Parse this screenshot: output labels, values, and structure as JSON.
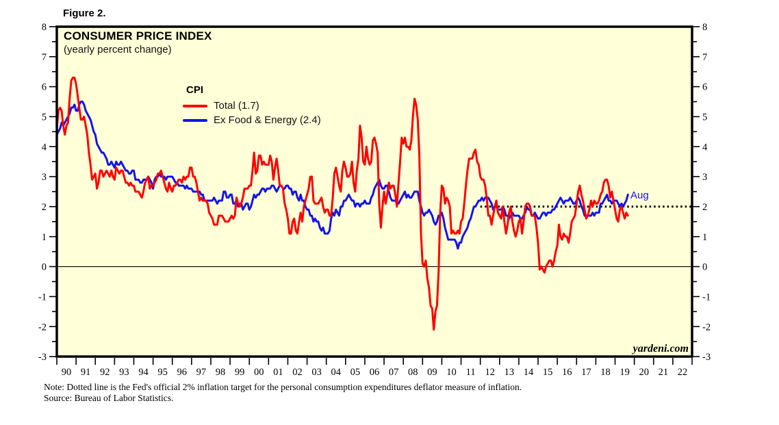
{
  "page": {
    "figure_label": "Figure 2.",
    "note": "Note: Dotted line is the Fed's official 2% inflation target for the personal consumption expenditures deflator measure of inflation.",
    "source": "Source: Bureau of Labor Statistics."
  },
  "colors": {
    "plot_bg": "#ffffd8",
    "border": "#000000",
    "total_line": "#ff0000",
    "core_line": "#1414e8",
    "target_line": "#000000",
    "axis_text": "#000000"
  },
  "chart_data": {
    "type": "line",
    "title": "CONSUMER PRICE INDEX",
    "subtitle": "(yearly percent change)",
    "legend_title": "CPI",
    "legend_position": "inside-top-left-offset",
    "grid": false,
    "ylim": [
      -3,
      8
    ],
    "y_major_step": 1,
    "y_minor_step": 0.5,
    "x_start": "1989-12",
    "x_frequency": "monthly",
    "x_tick_labels": [
      "90",
      "91",
      "92",
      "93",
      "94",
      "95",
      "96",
      "97",
      "98",
      "99",
      "00",
      "01",
      "02",
      "03",
      "04",
      "05",
      "06",
      "07",
      "08",
      "09",
      "10",
      "11",
      "12",
      "13",
      "14",
      "15",
      "16",
      "17",
      "18",
      "19",
      "20",
      "21",
      "22"
    ],
    "zero_line_value": 0,
    "target_line": {
      "value": 2.0,
      "start_year_label": "12",
      "style": "dotted",
      "color": "#000000"
    },
    "last_point_label": "Aug",
    "watermark": "yardeni.com",
    "series": [
      {
        "name": "Total (1.7)",
        "latest_value": 1.7,
        "color": "#ff0000",
        "values": [
          4.6,
          5.2,
          5.3,
          5.2,
          4.7,
          4.4,
          4.7,
          4.8,
          5.6,
          6.2,
          6.3,
          6.3,
          6.1,
          5.7,
          5.3,
          4.9,
          4.9,
          5.0,
          4.7,
          4.4,
          3.8,
          3.4,
          2.9,
          3.0,
          3.1,
          2.6,
          2.8,
          3.2,
          3.2,
          3.0,
          3.1,
          3.2,
          3.1,
          3.0,
          3.2,
          3.0,
          2.9,
          3.3,
          3.2,
          3.1,
          3.2,
          3.2,
          3.0,
          2.8,
          2.8,
          2.7,
          2.8,
          2.7,
          2.7,
          2.5,
          2.5,
          2.5,
          2.4,
          2.3,
          2.5,
          2.8,
          2.9,
          3.0,
          2.6,
          2.7,
          2.7,
          2.8,
          2.9,
          3.1,
          3.1,
          3.2,
          3.0,
          2.8,
          2.6,
          2.5,
          2.8,
          2.6,
          2.5,
          2.7,
          2.7,
          2.8,
          2.9,
          2.9,
          2.8,
          3.0,
          2.9,
          3.0,
          3.0,
          3.3,
          3.3,
          3.0,
          3.0,
          2.8,
          2.5,
          2.2,
          2.3,
          2.2,
          2.2,
          2.2,
          2.1,
          1.8,
          1.7,
          1.6,
          1.4,
          1.4,
          1.4,
          1.7,
          1.7,
          1.7,
          1.6,
          1.5,
          1.5,
          1.5,
          1.6,
          1.7,
          1.6,
          1.7,
          2.3,
          2.1,
          2.0,
          2.1,
          2.3,
          2.6,
          2.6,
          2.6,
          2.7,
          2.7,
          3.2,
          3.8,
          3.1,
          3.2,
          3.7,
          3.7,
          3.4,
          3.5,
          3.4,
          3.4,
          3.4,
          3.7,
          3.5,
          2.9,
          3.3,
          3.6,
          3.2,
          2.7,
          2.7,
          2.6,
          2.1,
          1.9,
          1.6,
          1.1,
          1.1,
          1.5,
          1.6,
          1.2,
          1.1,
          1.5,
          1.8,
          1.5,
          2.0,
          2.2,
          2.4,
          2.6,
          3.0,
          3.0,
          2.2,
          2.1,
          2.1,
          2.1,
          2.2,
          2.3,
          2.0,
          1.8,
          1.9,
          1.9,
          1.7,
          1.7,
          2.3,
          3.1,
          3.3,
          3.0,
          2.7,
          2.5,
          3.2,
          3.5,
          3.3,
          3.0,
          3.0,
          3.1,
          3.5,
          2.8,
          2.5,
          3.2,
          3.6,
          4.7,
          4.3,
          3.5,
          3.4,
          4.0,
          3.6,
          3.4,
          3.5,
          4.2,
          4.3,
          4.1,
          3.8,
          2.1,
          1.3,
          2.0,
          2.5,
          2.1,
          2.4,
          2.8,
          2.6,
          2.7,
          2.7,
          2.4,
          2.0,
          2.8,
          3.5,
          4.3,
          4.1,
          4.3,
          4.0,
          4.0,
          3.9,
          4.2,
          5.0,
          5.6,
          5.4,
          4.9,
          3.7,
          1.1,
          0.1,
          0.0,
          0.2,
          -0.4,
          -0.7,
          -1.3,
          -1.4,
          -2.1,
          -1.5,
          -1.3,
          -0.2,
          1.8,
          2.7,
          2.6,
          2.1,
          2.3,
          2.2,
          2.0,
          1.1,
          1.2,
          1.1,
          1.1,
          1.2,
          1.1,
          1.5,
          1.6,
          2.1,
          2.7,
          3.2,
          3.6,
          3.6,
          3.6,
          3.8,
          3.9,
          3.5,
          3.4,
          3.0,
          2.9,
          2.9,
          2.7,
          2.3,
          1.7,
          1.7,
          1.4,
          1.7,
          2.0,
          2.2,
          1.8,
          1.7,
          1.6,
          2.0,
          1.5,
          1.1,
          1.4,
          1.8,
          2.0,
          1.5,
          1.2,
          1.0,
          1.2,
          1.5,
          1.6,
          1.1,
          1.5,
          2.0,
          2.1,
          2.1,
          2.0,
          1.7,
          1.7,
          1.7,
          1.3,
          0.8,
          -0.1,
          0.0,
          -0.1,
          -0.2,
          0.0,
          0.1,
          0.2,
          0.2,
          0.0,
          0.2,
          0.5,
          0.7,
          1.4,
          1.0,
          0.9,
          1.1,
          1.0,
          1.0,
          0.8,
          1.1,
          1.5,
          1.6,
          1.7,
          2.1,
          2.5,
          2.7,
          2.4,
          2.2,
          1.9,
          1.6,
          1.7,
          1.9,
          2.2,
          2.0,
          2.2,
          2.1,
          2.1,
          2.2,
          2.4,
          2.5,
          2.8,
          2.9,
          2.9,
          2.7,
          2.3,
          2.5,
          2.2,
          1.9,
          1.6,
          1.5,
          1.9,
          2.0,
          1.8,
          1.6,
          1.8,
          1.7
        ]
      },
      {
        "name": "Ex Food & Energy (2.4)",
        "latest_value": 2.4,
        "color": "#1414e8",
        "values": [
          4.4,
          4.5,
          4.6,
          4.8,
          4.7,
          4.8,
          4.9,
          5.0,
          5.1,
          5.3,
          5.3,
          5.4,
          5.2,
          5.2,
          5.4,
          5.5,
          5.5,
          5.4,
          5.2,
          5.1,
          5.0,
          4.9,
          4.7,
          4.5,
          4.4,
          4.1,
          4.0,
          3.9,
          3.8,
          3.8,
          3.7,
          3.6,
          3.4,
          3.4,
          3.5,
          3.4,
          3.3,
          3.5,
          3.4,
          3.4,
          3.5,
          3.4,
          3.3,
          3.2,
          3.2,
          3.1,
          3.1,
          3.2,
          3.2,
          2.9,
          2.9,
          2.9,
          2.8,
          2.8,
          2.9,
          2.9,
          2.9,
          3.0,
          2.9,
          2.8,
          2.6,
          2.9,
          3.0,
          3.0,
          3.1,
          3.0,
          3.0,
          3.0,
          2.9,
          3.0,
          3.0,
          3.0,
          3.0,
          2.9,
          2.8,
          2.8,
          2.7,
          2.7,
          2.7,
          2.7,
          2.6,
          2.7,
          2.6,
          2.6,
          2.6,
          2.5,
          2.5,
          2.5,
          2.5,
          2.5,
          2.4,
          2.4,
          2.2,
          2.2,
          2.2,
          2.2,
          2.2,
          2.2,
          2.3,
          2.2,
          2.1,
          2.2,
          2.2,
          2.2,
          2.5,
          2.5,
          2.3,
          2.3,
          2.4,
          2.4,
          2.1,
          2.1,
          2.2,
          2.0,
          2.1,
          2.1,
          1.9,
          2.0,
          2.1,
          2.1,
          1.9,
          2.0,
          2.2,
          2.4,
          2.3,
          2.4,
          2.4,
          2.5,
          2.6,
          2.6,
          2.5,
          2.6,
          2.6,
          2.6,
          2.7,
          2.7,
          2.6,
          2.5,
          2.6,
          2.7,
          2.7,
          2.6,
          2.6,
          2.7,
          2.7,
          2.6,
          2.6,
          2.4,
          2.5,
          2.5,
          2.3,
          2.2,
          2.4,
          2.2,
          2.2,
          2.0,
          1.9,
          1.9,
          1.7,
          1.7,
          1.5,
          1.6,
          1.5,
          1.5,
          1.3,
          1.2,
          1.3,
          1.1,
          1.1,
          1.1,
          1.2,
          1.6,
          1.8,
          1.7,
          1.9,
          1.8,
          1.7,
          2.0,
          2.0,
          2.2,
          2.2,
          2.3,
          2.4,
          2.3,
          2.2,
          2.2,
          2.0,
          2.1,
          2.1,
          2.0,
          2.1,
          2.1,
          2.2,
          2.1,
          2.1,
          2.1,
          2.3,
          2.4,
          2.6,
          2.7,
          2.8,
          2.9,
          2.7,
          2.6,
          2.6,
          2.7,
          2.7,
          2.5,
          2.3,
          2.2,
          2.2,
          2.2,
          2.1,
          2.1,
          2.2,
          2.3,
          2.4,
          2.5,
          2.3,
          2.4,
          2.3,
          2.3,
          2.4,
          2.5,
          2.5,
          2.5,
          2.2,
          2.0,
          1.8,
          1.7,
          1.8,
          1.8,
          1.9,
          1.8,
          1.7,
          1.5,
          1.4,
          1.5,
          1.7,
          1.7,
          1.8,
          1.6,
          1.3,
          1.1,
          0.9,
          0.9,
          0.9,
          0.9,
          0.9,
          0.8,
          0.6,
          0.8,
          0.8,
          1.0,
          1.1,
          1.2,
          1.3,
          1.5,
          1.6,
          1.8,
          2.0,
          2.0,
          2.1,
          2.2,
          2.2,
          2.3,
          2.2,
          2.3,
          2.3,
          2.3,
          2.2,
          2.1,
          1.9,
          2.0,
          2.0,
          1.9,
          1.9,
          1.9,
          2.0,
          1.9,
          1.7,
          1.7,
          1.6,
          1.7,
          1.8,
          1.7,
          1.7,
          1.7,
          1.7,
          1.6,
          1.6,
          1.7,
          1.8,
          2.0,
          1.9,
          1.9,
          1.7,
          1.7,
          1.8,
          1.7,
          1.6,
          1.6,
          1.7,
          1.8,
          1.8,
          1.7,
          1.8,
          1.8,
          1.8,
          1.9,
          1.9,
          2.0,
          2.1,
          2.2,
          2.3,
          2.2,
          2.1,
          2.2,
          2.2,
          2.2,
          2.3,
          2.2,
          2.1,
          2.1,
          2.2,
          2.3,
          2.2,
          2.0,
          1.9,
          1.7,
          1.7,
          1.7,
          1.7,
          1.7,
          1.8,
          1.7,
          1.8,
          1.8,
          1.8,
          2.1,
          2.1,
          2.2,
          2.3,
          2.4,
          2.2,
          2.2,
          2.1,
          2.2,
          2.2,
          2.2,
          2.1,
          2.0,
          2.1,
          2.0,
          2.1,
          2.2,
          2.4
        ]
      }
    ]
  }
}
